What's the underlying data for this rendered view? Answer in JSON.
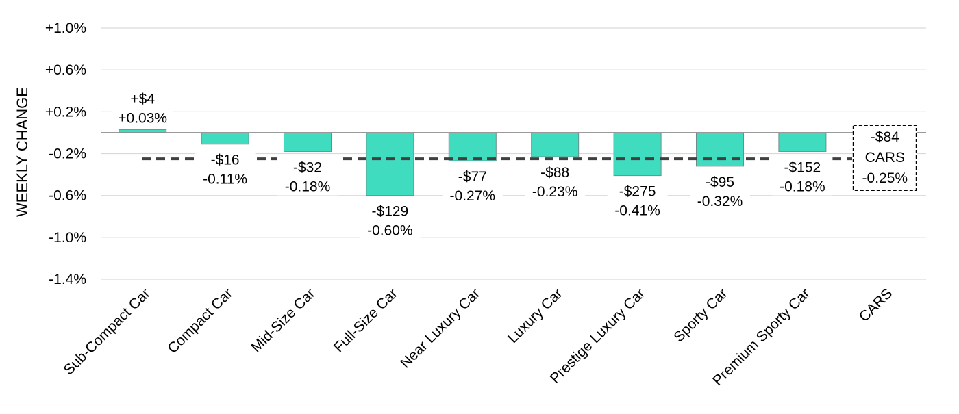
{
  "chart_data": {
    "type": "bar",
    "ylabel": "WEEKLY CHANGE",
    "xlabel": "",
    "ylim": [
      -1.4,
      1.0
    ],
    "yticks": [
      1.0,
      0.6,
      0.2,
      -0.2,
      -0.6,
      -1.0,
      -1.4
    ],
    "ytick_labels": [
      "+1.0%",
      "+0.6%",
      "+0.2%",
      "-0.2%",
      "-0.6%",
      "-1.0%",
      "-1.4%"
    ],
    "grid": true,
    "categories": [
      "Sub-Compact Car",
      "Compact Car",
      "Mid-Size Car",
      "Full-Size Car",
      "Near Luxury Car",
      "Luxury Car",
      "Prestige Luxury Car",
      "Sporty Car",
      "Premium Sporty Car",
      "CARS"
    ],
    "values": [
      0.03,
      -0.11,
      -0.18,
      -0.6,
      -0.27,
      -0.23,
      -0.41,
      -0.32,
      -0.18,
      null
    ],
    "dollar_labels": [
      "+$4",
      "-$16",
      "-$32",
      "-$129",
      "-$77",
      "-$88",
      "-$275",
      "-$95",
      "-$152",
      "-$84"
    ],
    "percent_labels": [
      "+0.03%",
      "-0.11%",
      "-0.18%",
      "-0.60%",
      "-0.27%",
      "-0.23%",
      "-0.41%",
      "-0.32%",
      "-0.18%",
      "-0.25%"
    ],
    "reference_line": {
      "value": -0.25
    },
    "summary_box": {
      "line1": "-$84",
      "line2": "CARS",
      "line3": "-0.25%"
    },
    "bar_color": "#40dcc0",
    "bar_edge_color": "#6b8f88",
    "reference_line_color": "#404040"
  }
}
